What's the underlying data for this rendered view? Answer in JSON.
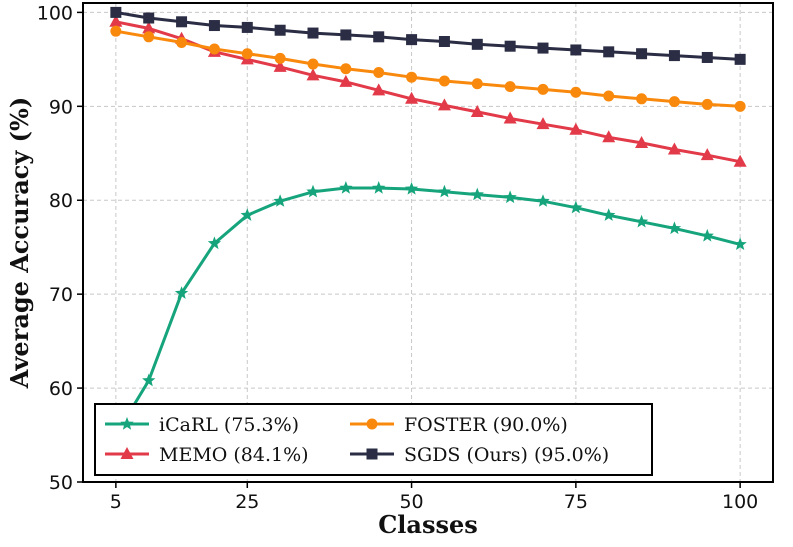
{
  "chart_data": {
    "type": "line",
    "xlabel": "Classes",
    "ylabel": "Average Accuracy (%)",
    "xlim": [
      0,
      105
    ],
    "ylim": [
      50,
      101
    ],
    "xticks": [
      5,
      25,
      50,
      75,
      100
    ],
    "yticks": [
      50,
      60,
      70,
      80,
      90,
      100
    ],
    "grid": true,
    "legend_position": "bottom-left",
    "x": [
      5,
      10,
      15,
      20,
      25,
      30,
      35,
      40,
      45,
      50,
      55,
      60,
      65,
      70,
      75,
      80,
      85,
      90,
      95,
      100
    ],
    "series": [
      {
        "name": "iCaRL (75.3%)",
        "color": "#16a47c",
        "marker": "star",
        "values": [
          55.0,
          60.8,
          70.1,
          75.4,
          78.4,
          79.9,
          80.9,
          81.3,
          81.3,
          81.2,
          80.9,
          80.6,
          80.3,
          79.9,
          79.2,
          78.4,
          77.7,
          77.0,
          76.2,
          75.3
        ]
      },
      {
        "name": "MEMO (84.1%)",
        "color": "#e23a48",
        "marker": "triangle",
        "values": [
          99.0,
          98.3,
          97.2,
          95.8,
          95.0,
          94.2,
          93.3,
          92.6,
          91.7,
          90.8,
          90.1,
          89.4,
          88.7,
          88.1,
          87.5,
          86.7,
          86.1,
          85.4,
          84.8,
          84.1
        ]
      },
      {
        "name": "FOSTER (90.0%)",
        "color": "#f9890d",
        "marker": "circle",
        "values": [
          98.0,
          97.4,
          96.8,
          96.1,
          95.6,
          95.1,
          94.5,
          94.0,
          93.6,
          93.1,
          92.7,
          92.4,
          92.1,
          91.8,
          91.5,
          91.1,
          90.8,
          90.5,
          90.2,
          90.0
        ]
      },
      {
        "name": "SGDS (Ours) (95.0%)",
        "color": "#2a2d44",
        "marker": "square",
        "values": [
          100.0,
          99.4,
          99.0,
          98.6,
          98.4,
          98.1,
          97.8,
          97.6,
          97.4,
          97.1,
          96.9,
          96.6,
          96.4,
          96.2,
          96.0,
          95.8,
          95.6,
          95.4,
          95.2,
          95.0
        ]
      }
    ]
  }
}
